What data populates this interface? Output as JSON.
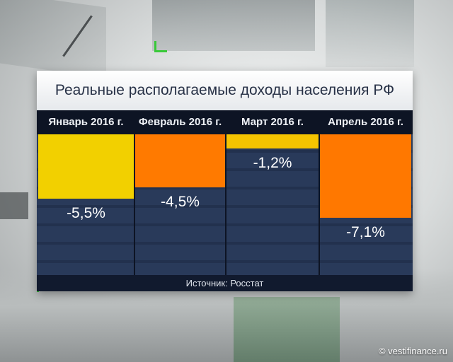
{
  "chart_data": {
    "type": "bar",
    "title": "Реальные располагаемые доходы населения РФ",
    "categories": [
      "Январь 2016 г.",
      "Февраль 2016 г.",
      "Март 2016 г.",
      "Апрель 2016 г."
    ],
    "values": [
      -5.5,
      -4.5,
      -1.2,
      -7.1
    ],
    "value_labels": [
      "-5,5%",
      "-4,5%",
      "-1,2%",
      "-7,1%"
    ],
    "units": "%",
    "ylim": [
      -8,
      0
    ],
    "source": "Источник: Росстат",
    "bar_colors": [
      "#f2d000",
      "#ff7a00",
      "#f5c400",
      "#ff7800"
    ]
  },
  "watermark": "© vestifinance.ru"
}
